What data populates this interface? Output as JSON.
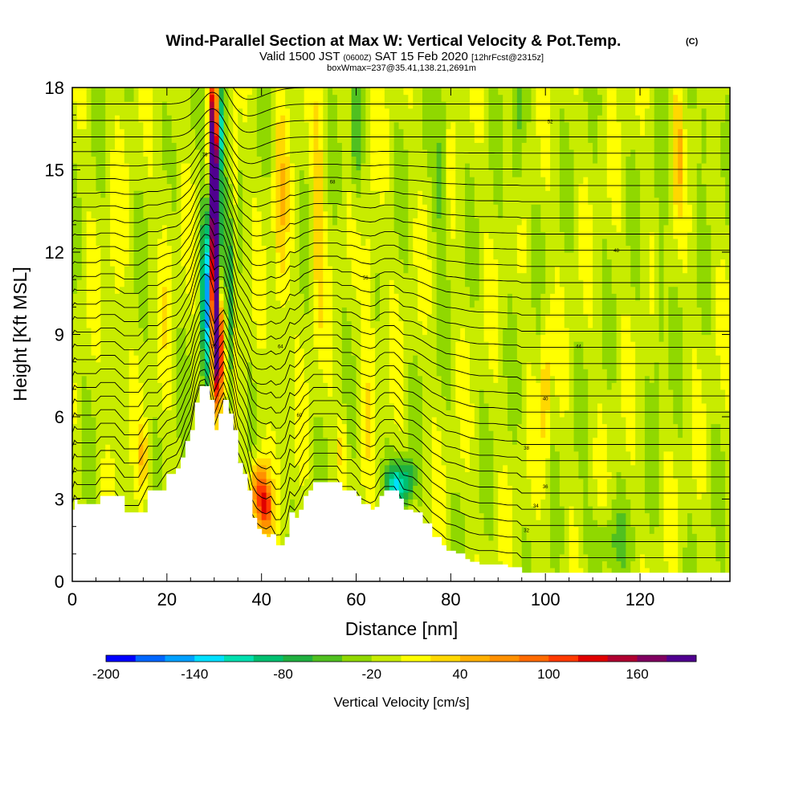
{
  "chart_data": {
    "type": "heatmap",
    "title": "Wind-Parallel Section at Max W: Vertical Velocity & Pot.Temp.",
    "title_mark": "(C)",
    "subtitle_parts": [
      "Valid 1500 JST",
      "(0600Z)",
      "SAT 15 Feb 2020",
      "[12hrFcst@2315z]"
    ],
    "subtitle2": "boxWmax=237@35.41,138.21,2691m",
    "xlabel": "Distance [nm]",
    "ylabel": "Height [Kft MSL]",
    "xlim": [
      0,
      139
    ],
    "ylim": [
      0,
      18
    ],
    "xticks": [
      "0",
      "20",
      "40",
      "60",
      "80",
      "100",
      "120"
    ],
    "yticks": [
      "0",
      "3",
      "6",
      "9",
      "12",
      "15",
      "18"
    ],
    "colorbar": {
      "label": "Vertical Velocity [cm/s]",
      "tick_labels": [
        "-200",
        "-140",
        "-80",
        "-20",
        "40",
        "100",
        "160"
      ],
      "tick_values": [
        -200,
        -140,
        -80,
        -20,
        40,
        100,
        160
      ],
      "range": [
        -200,
        200
      ],
      "colors": [
        "#0000ff",
        "#0066ff",
        "#00a0ff",
        "#00e0ff",
        "#00e0b0",
        "#00c070",
        "#20b040",
        "#50c020",
        "#90d800",
        "#c8ec00",
        "#ffff00",
        "#ffd800",
        "#ffb000",
        "#ff9000",
        "#ff6a00",
        "#ff3a00",
        "#e00000",
        "#b00030",
        "#800060",
        "#500090"
      ]
    },
    "terrain_kft": [
      [
        0,
        2.6
      ],
      [
        0.6,
        3.0
      ],
      [
        1,
        2.8
      ],
      [
        5,
        2.8
      ],
      [
        6,
        3.1
      ],
      [
        9,
        3.1
      ],
      [
        11,
        2.5
      ],
      [
        14,
        2.5
      ],
      [
        16,
        3.3
      ],
      [
        18,
        3.3
      ],
      [
        20,
        3.9
      ],
      [
        22,
        4.1
      ],
      [
        23,
        4.5
      ],
      [
        24,
        5.1
      ],
      [
        25,
        5.5
      ],
      [
        26,
        6.5
      ],
      [
        27,
        7.1
      ],
      [
        28,
        7.1
      ],
      [
        29,
        6.6
      ],
      [
        30,
        5.5
      ],
      [
        31,
        6.1
      ],
      [
        32,
        6.6
      ],
      [
        33,
        6.1
      ],
      [
        34,
        5.5
      ],
      [
        35,
        4.3
      ],
      [
        36,
        3.9
      ],
      [
        37,
        3.3
      ],
      [
        38,
        2.3
      ],
      [
        39,
        1.9
      ],
      [
        40,
        1.7
      ],
      [
        41,
        1.6
      ],
      [
        42,
        1.7
      ],
      [
        43,
        1.3
      ],
      [
        44,
        1.3
      ],
      [
        45,
        1.6
      ],
      [
        46,
        2.5
      ],
      [
        47,
        2.3
      ],
      [
        48,
        2.6
      ],
      [
        49,
        3.1
      ],
      [
        50,
        3.3
      ],
      [
        51,
        3.6
      ],
      [
        52,
        3.6
      ],
      [
        56,
        3.6
      ],
      [
        57,
        3.3
      ],
      [
        59,
        3.3
      ],
      [
        60,
        3.1
      ],
      [
        61,
        2.8
      ],
      [
        63,
        2.6
      ],
      [
        64,
        2.7
      ],
      [
        65,
        3.1
      ],
      [
        66,
        3.3
      ],
      [
        68,
        3.3
      ],
      [
        69,
        3.0
      ],
      [
        70,
        2.6
      ],
      [
        72,
        2.5
      ],
      [
        74,
        2.1
      ],
      [
        76,
        1.6
      ],
      [
        78,
        1.3
      ],
      [
        79,
        1.1
      ],
      [
        81,
        1.0
      ],
      [
        83,
        0.8
      ],
      [
        84,
        0.7
      ],
      [
        86,
        0.6
      ],
      [
        89,
        0.6
      ],
      [
        92,
        0.5
      ],
      [
        94,
        0.5
      ],
      [
        95,
        0.3
      ],
      [
        139,
        0.3
      ]
    ],
    "velocity_features": [
      {
        "x": 30.0,
        "y": 16.0,
        "sx": 0.9,
        "sy": 2.5,
        "v": 200
      },
      {
        "x": 30.0,
        "y": 12.0,
        "sx": 1.1,
        "sy": 4.0,
        "v": 220
      },
      {
        "x": 31.0,
        "y": 8.5,
        "sx": 1.0,
        "sy": 2.2,
        "v": 200
      },
      {
        "x": 28.3,
        "y": 10.5,
        "sx": 0.9,
        "sy": 3.5,
        "v": -160
      },
      {
        "x": 31.8,
        "y": 12.5,
        "sx": 0.7,
        "sy": 4.5,
        "v": -120
      },
      {
        "x": 33.5,
        "y": 10.5,
        "sx": 0.7,
        "sy": 4.0,
        "v": -90
      },
      {
        "x": 31.0,
        "y": 16.5,
        "sx": 0.7,
        "sy": 1.8,
        "v": -150
      },
      {
        "x": 34.0,
        "y": 14.0,
        "sx": 1.0,
        "sy": 4.0,
        "v": 50
      },
      {
        "x": 39.5,
        "y": 3.3,
        "sx": 1.8,
        "sy": 1.2,
        "v": 120
      },
      {
        "x": 41.0,
        "y": 2.6,
        "sx": 1.2,
        "sy": 0.8,
        "v": 90
      },
      {
        "x": 68.5,
        "y": 3.4,
        "sx": 2.2,
        "sy": 0.9,
        "v": -110
      },
      {
        "x": 71.0,
        "y": 3.8,
        "sx": 1.3,
        "sy": 0.7,
        "v": -60
      },
      {
        "x": 52.0,
        "y": 13.0,
        "sx": 1.2,
        "sy": 4.0,
        "v": 50
      },
      {
        "x": 44.0,
        "y": 13.0,
        "sx": 1.5,
        "sy": 5.0,
        "v": 40
      },
      {
        "x": 78.0,
        "y": 15.0,
        "sx": 1.3,
        "sy": 3.5,
        "v": -40
      },
      {
        "x": 60.0,
        "y": 16.0,
        "sx": 1.2,
        "sy": 2.5,
        "v": -50
      },
      {
        "x": 63.0,
        "y": 10.0,
        "sx": 1.4,
        "sy": 5.0,
        "v": 30
      },
      {
        "x": 94.0,
        "y": 16.0,
        "sx": 1.2,
        "sy": 3.0,
        "v": -40
      },
      {
        "x": 100.0,
        "y": 7.0,
        "sx": 1.0,
        "sy": 3.0,
        "v": 50
      },
      {
        "x": 128.0,
        "y": 16.0,
        "sx": 1.0,
        "sy": 2.5,
        "v": 50
      },
      {
        "x": 124.0,
        "y": 10.0,
        "sx": 1.2,
        "sy": 4.0,
        "v": -30
      },
      {
        "x": 134.0,
        "y": 17.0,
        "sx": 1.5,
        "sy": 2.0,
        "v": -30
      },
      {
        "x": 113.0,
        "y": 1.5,
        "sx": 5.0,
        "sy": 1.2,
        "v": -30
      },
      {
        "x": 15.0,
        "y": 4.5,
        "sx": 1.2,
        "sy": 1.2,
        "v": 45
      },
      {
        "x": 9.0,
        "y": 10.0,
        "sx": 1.4,
        "sy": 4.0,
        "v": 20
      },
      {
        "x": 20.0,
        "y": 12.0,
        "sx": 1.2,
        "sy": 4.0,
        "v": 20
      },
      {
        "x": 57.0,
        "y": 5.0,
        "sx": 1.0,
        "sy": 1.2,
        "v": 40
      }
    ],
    "velocity_background": -10,
    "contour_labels": [
      "32",
      "34",
      "36",
      "38",
      "40",
      "44",
      "48",
      "52",
      "56",
      "60",
      "64",
      "68",
      "72",
      "76"
    ]
  }
}
